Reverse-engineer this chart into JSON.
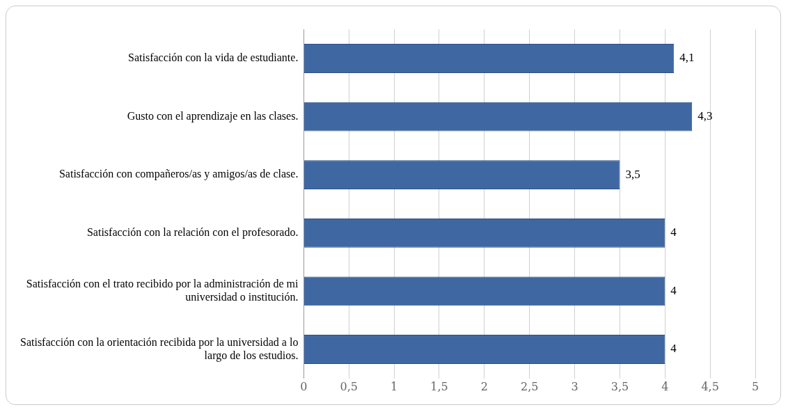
{
  "chart_data": {
    "type": "bar",
    "orientation": "horizontal",
    "categories": [
      "Satisfacción con la vida de estudiante.",
      "Gusto con el aprendizaje en las clases.",
      "Satisfacción con compañeros/as y amigos/as de clase.",
      "Satisfacción con la relación con el profesorado.",
      "Satisfacción con el trato recibido por la administración de mi universidad o institución.",
      "Satisfacción con la orientación recibida por la universidad a lo largo de los estudios."
    ],
    "values": [
      4.1,
      4.3,
      3.5,
      4,
      4,
      4
    ],
    "value_labels": [
      "4,1",
      "4,3",
      "3,5",
      "4",
      "4",
      "4"
    ],
    "color": "#3f68a3",
    "xlim": [
      0,
      5
    ],
    "xticks": [
      0,
      {
        "value": 0.5,
        "label": "0,5"
      },
      1,
      {
        "value": 1.5,
        "label": "1,5"
      },
      2,
      {
        "value": 2.5,
        "label": "2,5"
      },
      3,
      {
        "value": 3.5,
        "label": "3,5"
      },
      4,
      {
        "value": 4.5,
        "label": "4,5"
      },
      5
    ],
    "grid": "x",
    "legend": false
  }
}
